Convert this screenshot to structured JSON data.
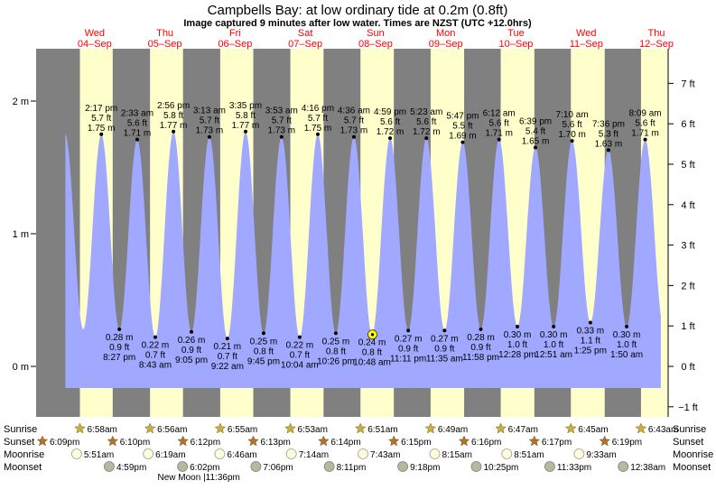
{
  "chart_data": {
    "type": "area",
    "title": "Campbells Bay: at low  ordinary tide at 0.2m (0.8ft)",
    "subtitle": "Image captured 9 minutes after low water. Times are NZST (UTC +12.0hrs)",
    "xlabel": "",
    "ylabel": "",
    "ylim": [
      -0.18,
      2.02
    ],
    "y_left_ticks": [
      {
        "value": 0,
        "label": "0 m"
      },
      {
        "value": 1,
        "label": "1 m"
      },
      {
        "value": 2,
        "label": "2 m"
      }
    ],
    "y_right_ticks": [
      {
        "value": -1,
        "label": "−1 ft"
      },
      {
        "value": 0,
        "label": "0 ft"
      },
      {
        "value": 1,
        "label": "1 ft"
      },
      {
        "value": 2,
        "label": "2 ft"
      },
      {
        "value": 3,
        "label": "3 ft"
      },
      {
        "value": 4,
        "label": "4 ft"
      },
      {
        "value": 5,
        "label": "5 ft"
      },
      {
        "value": 6,
        "label": "6 ft"
      },
      {
        "value": 7,
        "label": "7 ft"
      }
    ],
    "days": [
      {
        "dow": "Wed",
        "date": "04–Sep",
        "hour": 12
      },
      {
        "dow": "Thu",
        "date": "05–Sep",
        "hour": 36
      },
      {
        "dow": "Fri",
        "date": "06–Sep",
        "hour": 60
      },
      {
        "dow": "Sat",
        "date": "07–Sep",
        "hour": 84
      },
      {
        "dow": "Sun",
        "date": "08–Sep",
        "hour": 108
      },
      {
        "dow": "Mon",
        "date": "09–Sep",
        "hour": 132
      },
      {
        "dow": "Tue",
        "date": "10–Sep",
        "hour": 156
      },
      {
        "dow": "Wed",
        "date": "11–Sep",
        "hour": 180
      },
      {
        "dow": "Thu",
        "date": "12–Sep",
        "hour": 204
      }
    ],
    "tides": [
      {
        "hour": 14.28,
        "type": "high",
        "time": "2:17 pm",
        "ft": "5.7 ft",
        "m": "1.75 m",
        "value": 1.75
      },
      {
        "hour": 20.45,
        "type": "low",
        "time": "8:27 pm",
        "ft": "0.9 ft",
        "m": "0.28 m",
        "value": 0.28
      },
      {
        "hour": 26.55,
        "type": "high",
        "time": "2:33 am",
        "ft": "5.6 ft",
        "m": "1.71 m",
        "value": 1.71
      },
      {
        "hour": 32.72,
        "type": "low",
        "time": "8:43 am",
        "ft": "0.7 ft",
        "m": "0.22 m",
        "value": 0.22
      },
      {
        "hour": 38.93,
        "type": "high",
        "time": "2:56 pm",
        "ft": "5.8 ft",
        "m": "1.77 m",
        "value": 1.77
      },
      {
        "hour": 45.08,
        "type": "low",
        "time": "9:05 pm",
        "ft": "0.9 ft",
        "m": "0.26 m",
        "value": 0.26
      },
      {
        "hour": 51.22,
        "type": "high",
        "time": "3:13 am",
        "ft": "5.7 ft",
        "m": "1.73 m",
        "value": 1.73
      },
      {
        "hour": 57.37,
        "type": "low",
        "time": "9:22 am",
        "ft": "0.7 ft",
        "m": "0.21 m",
        "value": 0.21
      },
      {
        "hour": 63.58,
        "type": "high",
        "time": "3:35 pm",
        "ft": "5.8 ft",
        "m": "1.77 m",
        "value": 1.77
      },
      {
        "hour": 69.75,
        "type": "low",
        "time": "9:45 pm",
        "ft": "0.8 ft",
        "m": "0.25 m",
        "value": 0.25
      },
      {
        "hour": 75.88,
        "type": "high",
        "time": "3:53 am",
        "ft": "5.7 ft",
        "m": "1.73 m",
        "value": 1.73
      },
      {
        "hour": 82.07,
        "type": "low",
        "time": "10:04 am",
        "ft": "0.7 ft",
        "m": "0.22 m",
        "value": 0.22
      },
      {
        "hour": 88.27,
        "type": "high",
        "time": "4:16 pm",
        "ft": "5.7 ft",
        "m": "1.75 m",
        "value": 1.75
      },
      {
        "hour": 94.43,
        "type": "low",
        "time": "10:26 pm",
        "ft": "0.8 ft",
        "m": "0.25 m",
        "value": 0.25
      },
      {
        "hour": 100.6,
        "type": "high",
        "time": "4:36 am",
        "ft": "5.7 ft",
        "m": "1.73 m",
        "value": 1.73
      },
      {
        "hour": 106.8,
        "type": "low",
        "time": "10:48 am",
        "ft": "0.8 ft",
        "m": "0.24 m",
        "value": 0.24
      },
      {
        "hour": 112.98,
        "type": "high",
        "time": "4:59 pm",
        "ft": "5.6 ft",
        "m": "1.72 m",
        "value": 1.72
      },
      {
        "hour": 119.18,
        "type": "low",
        "time": "11:11 pm",
        "ft": "0.9 ft",
        "m": "0.27 m",
        "value": 0.27
      },
      {
        "hour": 125.38,
        "type": "high",
        "time": "5:23 am",
        "ft": "5.6 ft",
        "m": "1.72 m",
        "value": 1.72
      },
      {
        "hour": 131.58,
        "type": "low",
        "time": "11:35 am",
        "ft": "0.9 ft",
        "m": "0.27 m",
        "value": 0.27
      },
      {
        "hour": 137.78,
        "type": "high",
        "time": "5:47 pm",
        "ft": "5.5 ft",
        "m": "1.69 m",
        "value": 1.69
      },
      {
        "hour": 143.97,
        "type": "low",
        "time": "11:58 pm",
        "ft": "0.9 ft",
        "m": "0.28 m",
        "value": 0.28
      },
      {
        "hour": 150.2,
        "type": "high",
        "time": "6:12 am",
        "ft": "5.6 ft",
        "m": "1.71 m",
        "value": 1.71
      },
      {
        "hour": 156.47,
        "type": "low",
        "time": "12:28 pm",
        "ft": "1.0 ft",
        "m": "0.30 m",
        "value": 0.3
      },
      {
        "hour": 162.65,
        "type": "high",
        "time": "6:39 pm",
        "ft": "5.4 ft",
        "m": "1.65 m",
        "value": 1.65
      },
      {
        "hour": 168.85,
        "type": "low",
        "time": "12:51 am",
        "ft": "1.0 ft",
        "m": "0.30 m",
        "value": 0.3
      },
      {
        "hour": 175.17,
        "type": "high",
        "time": "7:10 am",
        "ft": "5.6 ft",
        "m": "1.70 m",
        "value": 1.7
      },
      {
        "hour": 181.42,
        "type": "low",
        "time": "1:25 pm",
        "ft": "1.1 ft",
        "m": "0.33 m",
        "value": 0.33
      },
      {
        "hour": 187.6,
        "type": "high",
        "time": "7:36 pm",
        "ft": "5.3 ft",
        "m": "1.63 m",
        "value": 1.63
      },
      {
        "hour": 193.83,
        "type": "low",
        "time": "1:50 am",
        "ft": "1.0 ft",
        "m": "0.30 m",
        "value": 0.3
      },
      {
        "hour": 200.15,
        "type": "high",
        "time": "8:09 am",
        "ft": "5.6 ft",
        "m": "1.71 m",
        "value": 1.71
      }
    ],
    "sunrise": [
      {
        "hour": 6.97,
        "time": "6:58am"
      },
      {
        "hour": 30.93,
        "time": "6:56am"
      },
      {
        "hour": 54.92,
        "time": "6:55am"
      },
      {
        "hour": 78.88,
        "time": "6:53am"
      },
      {
        "hour": 102.85,
        "time": "6:51am"
      },
      {
        "hour": 126.82,
        "time": "6:49am"
      },
      {
        "hour": 150.78,
        "time": "6:47am"
      },
      {
        "hour": 174.75,
        "time": "6:45am"
      },
      {
        "hour": 198.72,
        "time": "6:43am"
      }
    ],
    "sunset": [
      {
        "hour": -5.85,
        "time": "6:09pm"
      },
      {
        "hour": 18.17,
        "time": "6:10pm"
      },
      {
        "hour": 42.2,
        "time": "6:12pm"
      },
      {
        "hour": 66.22,
        "time": "6:13pm"
      },
      {
        "hour": 90.23,
        "time": "6:14pm"
      },
      {
        "hour": 114.25,
        "time": "6:15pm"
      },
      {
        "hour": 138.27,
        "time": "6:16pm"
      },
      {
        "hour": 162.28,
        "time": "6:17pm"
      },
      {
        "hour": 186.32,
        "time": "6:19pm"
      }
    ],
    "moonrise": [
      {
        "hour": 5.85,
        "time": "5:51am"
      },
      {
        "hour": 30.32,
        "time": "6:19am"
      },
      {
        "hour": 54.77,
        "time": "6:46am"
      },
      {
        "hour": 79.23,
        "time": "7:14am"
      },
      {
        "hour": 103.72,
        "time": "7:43am"
      },
      {
        "hour": 128.25,
        "time": "8:15am"
      },
      {
        "hour": 152.85,
        "time": "8:51am"
      },
      {
        "hour": 177.55,
        "time": "9:33am"
      }
    ],
    "moonset": [
      {
        "hour": 16.98,
        "time": "4:59pm"
      },
      {
        "hour": 42.03,
        "time": "6:02pm"
      },
      {
        "hour": 67.1,
        "time": "7:06pm"
      },
      {
        "hour": 92.18,
        "time": "8:11pm"
      },
      {
        "hour": 117.3,
        "time": "9:18pm"
      },
      {
        "hour": 142.42,
        "time": "10:25pm"
      },
      {
        "hour": 167.55,
        "time": "11:33pm"
      },
      {
        "hour": 192.63,
        "time": "12:38am"
      }
    ],
    "row_labels": {
      "sunrise": "Sunrise",
      "sunset": "Sunset",
      "moonrise": "Moonrise",
      "moonset": "Moonset"
    },
    "new_moon": {
      "hour": 47.6,
      "label": "New Moon |11:36pm"
    },
    "current": {
      "hour": 106.95,
      "value": 0.24
    },
    "colors": {
      "night": "#808080",
      "day": "#ffffcc",
      "water": "#a0a8ff",
      "day_label": "#ff0000",
      "sun": "#c8b040",
      "sunset": "#b07030",
      "moon": "#fffde0",
      "moon_dark": "#b8b8a0",
      "current_marker": "#ffff00"
    }
  }
}
